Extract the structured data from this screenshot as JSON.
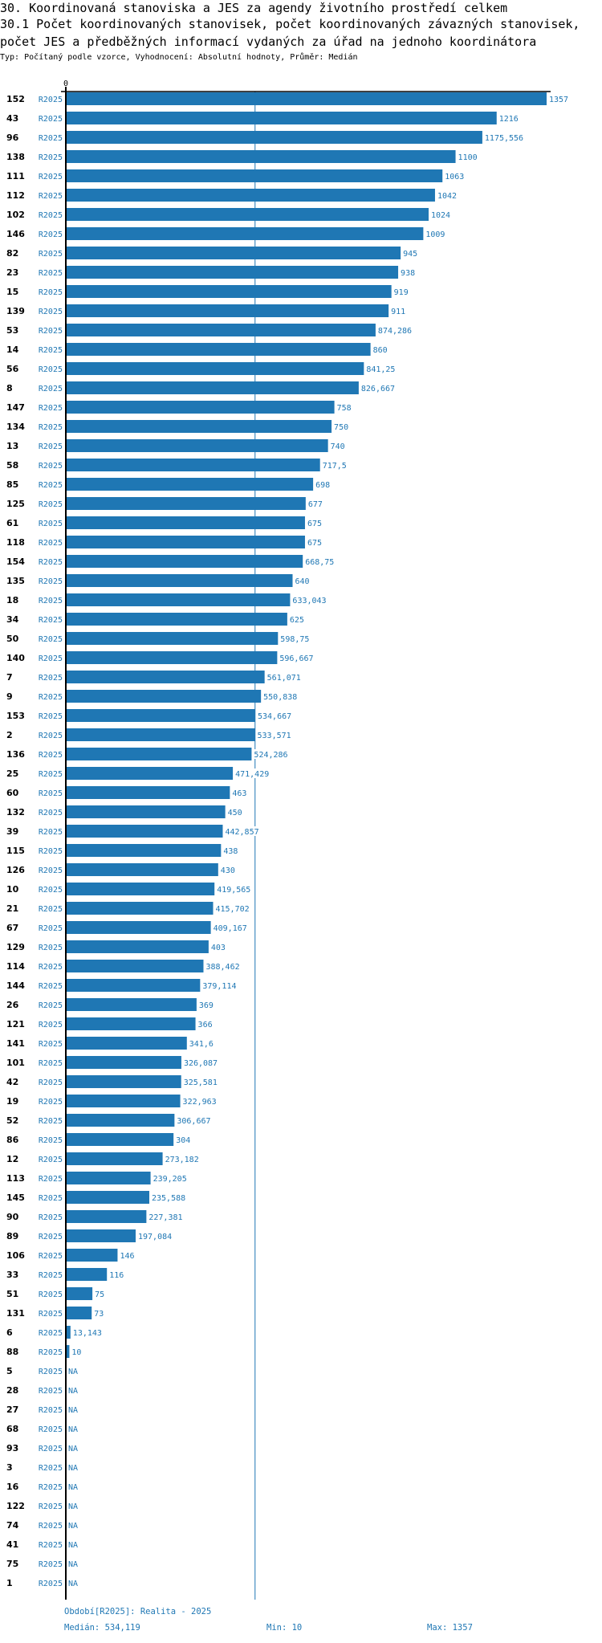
{
  "header": {
    "title_line1": "30. Koordinovaná stanoviska a JES za agendy životního prostředí celkem",
    "title_line2": "30.1 Počet koordinovaných stanovisek, počet koordinovaných závazných stanovisek,",
    "title_line3": "počet JES a předběžných informací vydaných za úřad na jednoho koordinátora",
    "subtitle": "Typ: Počítaný podle vzorce, Vyhodnocení: Absolutní hodnoty, Průměr: Medián"
  },
  "footer": {
    "period": "Období[R2025]: Realita - 2025",
    "median": "Medián: 534,119",
    "min": "Min: 10",
    "max": "Max: 1357"
  },
  "colors": {
    "bar": "#1f77b4",
    "text_blue": "#1f77b4",
    "axis": "#000000"
  },
  "chart_data": {
    "type": "bar",
    "orientation": "horizontal",
    "x_tick_label": "0",
    "xlim": [
      0,
      1357
    ],
    "median": 534.119,
    "series_label": "R2025",
    "na_label": "NA",
    "rows": [
      {
        "id": "152",
        "value": 1357,
        "label": "1357"
      },
      {
        "id": "43",
        "value": 1216,
        "label": "1216"
      },
      {
        "id": "96",
        "value": 1175.556,
        "label": "1175,556"
      },
      {
        "id": "138",
        "value": 1100,
        "label": "1100"
      },
      {
        "id": "111",
        "value": 1063,
        "label": "1063"
      },
      {
        "id": "112",
        "value": 1042,
        "label": "1042"
      },
      {
        "id": "102",
        "value": 1024,
        "label": "1024"
      },
      {
        "id": "146",
        "value": 1009,
        "label": "1009"
      },
      {
        "id": "82",
        "value": 945,
        "label": "945"
      },
      {
        "id": "23",
        "value": 938,
        "label": "938"
      },
      {
        "id": "15",
        "value": 919,
        "label": "919"
      },
      {
        "id": "139",
        "value": 911,
        "label": "911"
      },
      {
        "id": "53",
        "value": 874.286,
        "label": "874,286"
      },
      {
        "id": "14",
        "value": 860,
        "label": "860"
      },
      {
        "id": "56",
        "value": 841.25,
        "label": "841,25"
      },
      {
        "id": "8",
        "value": 826.667,
        "label": "826,667"
      },
      {
        "id": "147",
        "value": 758,
        "label": "758"
      },
      {
        "id": "134",
        "value": 750,
        "label": "750"
      },
      {
        "id": "13",
        "value": 740,
        "label": "740"
      },
      {
        "id": "58",
        "value": 717.5,
        "label": "717,5"
      },
      {
        "id": "85",
        "value": 698,
        "label": "698"
      },
      {
        "id": "125",
        "value": 677,
        "label": "677"
      },
      {
        "id": "61",
        "value": 675,
        "label": "675"
      },
      {
        "id": "118",
        "value": 675,
        "label": "675"
      },
      {
        "id": "154",
        "value": 668.75,
        "label": "668,75"
      },
      {
        "id": "135",
        "value": 640,
        "label": "640"
      },
      {
        "id": "18",
        "value": 633.043,
        "label": "633,043"
      },
      {
        "id": "34",
        "value": 625,
        "label": "625"
      },
      {
        "id": "50",
        "value": 598.75,
        "label": "598,75"
      },
      {
        "id": "140",
        "value": 596.667,
        "label": "596,667"
      },
      {
        "id": "7",
        "value": 561.071,
        "label": "561,071"
      },
      {
        "id": "9",
        "value": 550.838,
        "label": "550,838"
      },
      {
        "id": "153",
        "value": 534.667,
        "label": "534,667"
      },
      {
        "id": "2",
        "value": 533.571,
        "label": "533,571"
      },
      {
        "id": "136",
        "value": 524.286,
        "label": "524,286"
      },
      {
        "id": "25",
        "value": 471.429,
        "label": "471,429"
      },
      {
        "id": "60",
        "value": 463,
        "label": "463"
      },
      {
        "id": "132",
        "value": 450,
        "label": "450"
      },
      {
        "id": "39",
        "value": 442.857,
        "label": "442,857"
      },
      {
        "id": "115",
        "value": 438,
        "label": "438"
      },
      {
        "id": "126",
        "value": 430,
        "label": "430"
      },
      {
        "id": "10",
        "value": 419.565,
        "label": "419,565"
      },
      {
        "id": "21",
        "value": 415.702,
        "label": "415,702"
      },
      {
        "id": "67",
        "value": 409.167,
        "label": "409,167"
      },
      {
        "id": "129",
        "value": 403,
        "label": "403"
      },
      {
        "id": "114",
        "value": 388.462,
        "label": "388,462"
      },
      {
        "id": "144",
        "value": 379.114,
        "label": "379,114"
      },
      {
        "id": "26",
        "value": 369,
        "label": "369"
      },
      {
        "id": "121",
        "value": 366,
        "label": "366"
      },
      {
        "id": "141",
        "value": 341.6,
        "label": "341,6"
      },
      {
        "id": "101",
        "value": 326.087,
        "label": "326,087"
      },
      {
        "id": "42",
        "value": 325.581,
        "label": "325,581"
      },
      {
        "id": "19",
        "value": 322.963,
        "label": "322,963"
      },
      {
        "id": "52",
        "value": 306.667,
        "label": "306,667"
      },
      {
        "id": "86",
        "value": 304,
        "label": "304"
      },
      {
        "id": "12",
        "value": 273.182,
        "label": "273,182"
      },
      {
        "id": "113",
        "value": 239.205,
        "label": "239,205"
      },
      {
        "id": "145",
        "value": 235.588,
        "label": "235,588"
      },
      {
        "id": "90",
        "value": 227.381,
        "label": "227,381"
      },
      {
        "id": "89",
        "value": 197.084,
        "label": "197,084"
      },
      {
        "id": "106",
        "value": 146,
        "label": "146"
      },
      {
        "id": "33",
        "value": 116,
        "label": "116"
      },
      {
        "id": "51",
        "value": 75,
        "label": "75"
      },
      {
        "id": "131",
        "value": 73,
        "label": "73"
      },
      {
        "id": "6",
        "value": 13.143,
        "label": "13,143"
      },
      {
        "id": "88",
        "value": 10,
        "label": "10"
      },
      {
        "id": "5",
        "value": null,
        "label": "NA"
      },
      {
        "id": "28",
        "value": null,
        "label": "NA"
      },
      {
        "id": "27",
        "value": null,
        "label": "NA"
      },
      {
        "id": "68",
        "value": null,
        "label": "NA"
      },
      {
        "id": "93",
        "value": null,
        "label": "NA"
      },
      {
        "id": "3",
        "value": null,
        "label": "NA"
      },
      {
        "id": "16",
        "value": null,
        "label": "NA"
      },
      {
        "id": "122",
        "value": null,
        "label": "NA"
      },
      {
        "id": "74",
        "value": null,
        "label": "NA"
      },
      {
        "id": "41",
        "value": null,
        "label": "NA"
      },
      {
        "id": "75",
        "value": null,
        "label": "NA"
      },
      {
        "id": "1",
        "value": null,
        "label": "NA"
      }
    ]
  }
}
